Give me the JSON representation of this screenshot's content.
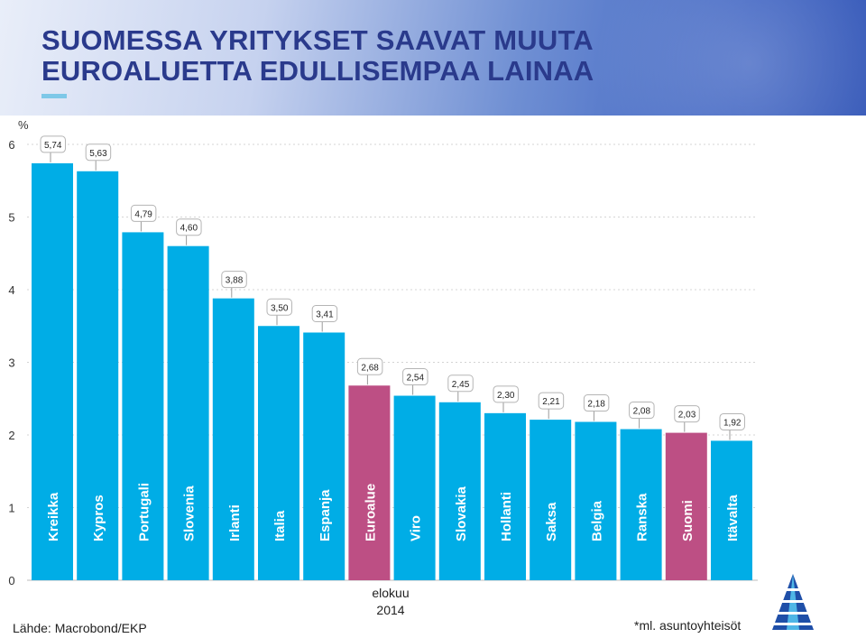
{
  "header": {
    "title_line1": "SUOMESSA YRITYKSET SAAVAT MUUTA",
    "title_line2": "EUROALUETTA EDULLISEMPAA LAINAA"
  },
  "chart_data": {
    "type": "bar",
    "unit_label": "%",
    "ylim": [
      0,
      6
    ],
    "yticks": [
      0,
      1,
      2,
      3,
      4,
      5,
      6
    ],
    "categories": [
      "Kreikka",
      "Kypros",
      "Portugali",
      "Slovenia",
      "Irlanti",
      "Italia",
      "Espanja",
      "Euroalue",
      "Viro",
      "Slovakia",
      "Hollanti",
      "Saksa",
      "Belgia",
      "Ranska",
      "Suomi",
      "Itävalta"
    ],
    "values": [
      5.74,
      5.63,
      4.79,
      4.6,
      3.88,
      3.5,
      3.41,
      2.68,
      2.54,
      2.45,
      2.3,
      2.21,
      2.18,
      2.08,
      2.03,
      1.92
    ],
    "value_labels": [
      "5,74",
      "5,63",
      "4,79",
      "4,60",
      "3,88",
      "3,50",
      "3,41",
      "2,68",
      "2,54",
      "2,45",
      "2,30",
      "2,21",
      "2,18",
      "2,08",
      "2,03",
      "1,92"
    ],
    "highlighted": [
      "Euroalue",
      "Suomi"
    ],
    "x_label_line1": "elokuu",
    "x_label_line2": "2014",
    "colors": {
      "bar": "#00ade6",
      "highlight": "#bd4f84"
    }
  },
  "footer": {
    "source": "Lähde: Macrobond/EKP",
    "note": "*ml. asuntoyhteisöt"
  },
  "logo": {
    "icon": "bank-logo-icon"
  }
}
